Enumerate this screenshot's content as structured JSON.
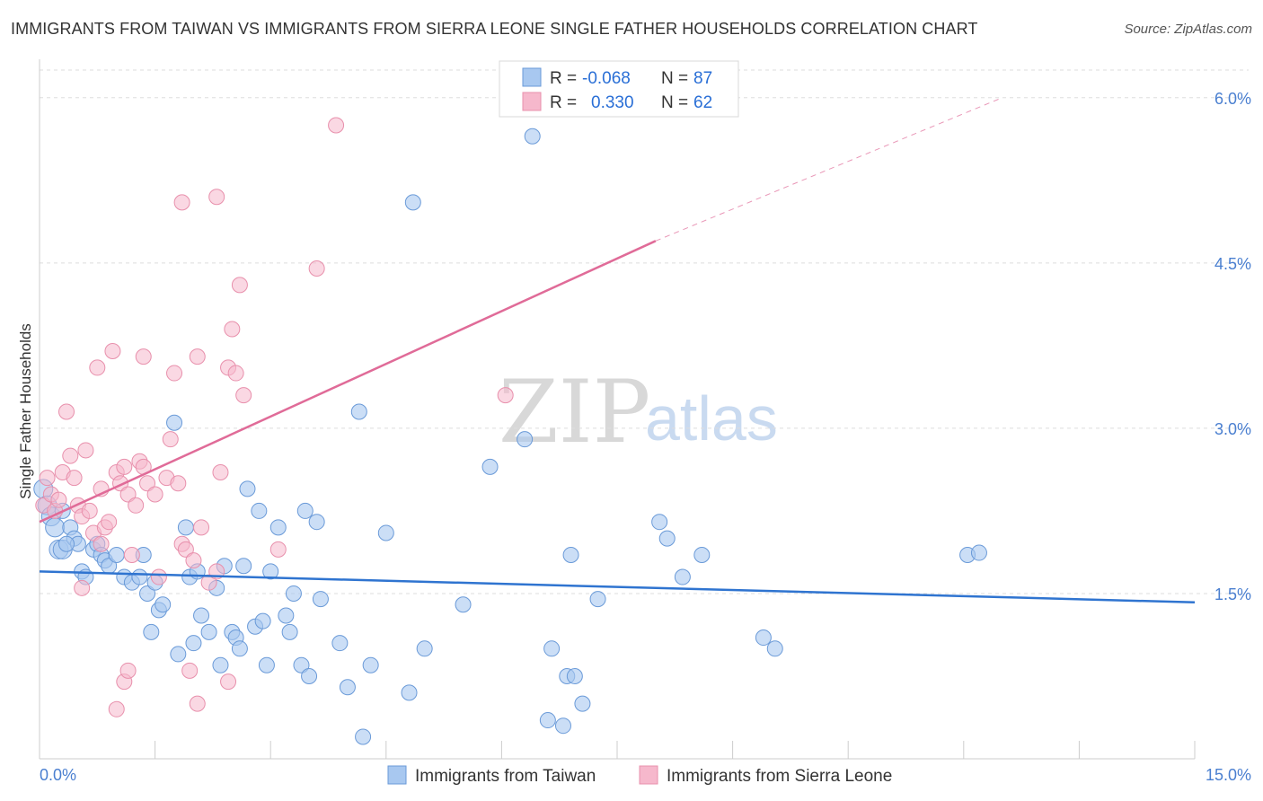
{
  "header": {
    "title": "IMMIGRANTS FROM TAIWAN VS IMMIGRANTS FROM SIERRA LEONE SINGLE FATHER HOUSEHOLDS CORRELATION CHART",
    "source": "Source: ZipAtlas.com"
  },
  "watermark": {
    "zip": "ZIP",
    "atlas": "atlas"
  },
  "legend": {
    "rows": [
      {
        "r_label": "R =",
        "r_value": "-0.068",
        "n_label": "N =",
        "n_value": "87"
      },
      {
        "r_label": "R =",
        "r_value": "0.330",
        "n_label": "N =",
        "n_value": "62"
      }
    ]
  },
  "bottom_legend": {
    "taiwan": "Immigrants from Taiwan",
    "sierra_leone": "Immigrants from Sierra Leone"
  },
  "colors": {
    "taiwan_fill": "#a8c8f0",
    "taiwan_stroke": "#6a9ad8",
    "taiwan_line": "#2f74d0",
    "sl_fill": "#f6b8cc",
    "sl_stroke": "#e890ac",
    "sl_line": "#e06b98",
    "grid": "#dddddd",
    "tick_text": "#4a7fd0"
  },
  "chart_data": {
    "type": "scatter",
    "title": "IMMIGRANTS FROM TAIWAN VS IMMIGRANTS FROM SIERRA LEONE SINGLE FATHER HOUSEHOLDS CORRELATION CHART",
    "xlabel": "",
    "ylabel": "Single Father Households",
    "xlim": [
      0,
      15
    ],
    "ylim": [
      0,
      6.3
    ],
    "x_tick_labels": [
      "0.0%",
      "15.0%"
    ],
    "y_ticks": [
      1.5,
      3.0,
      4.5,
      6.0
    ],
    "y_tick_labels": [
      "1.5%",
      "3.0%",
      "4.5%",
      "6.0%"
    ],
    "grid": true,
    "legend_position": "top-center",
    "series": [
      {
        "name": "Immigrants from Taiwan",
        "r": -0.068,
        "n": 87,
        "trend": {
          "x": [
            0,
            15
          ],
          "y": [
            1.7,
            1.42
          ]
        },
        "points": [
          [
            0.05,
            2.45
          ],
          [
            0.1,
            2.3
          ],
          [
            0.15,
            2.2
          ],
          [
            0.2,
            2.1
          ],
          [
            0.25,
            1.9
          ],
          [
            0.3,
            1.9
          ],
          [
            0.4,
            2.1
          ],
          [
            0.45,
            2.0
          ],
          [
            0.5,
            1.95
          ],
          [
            0.55,
            1.7
          ],
          [
            0.6,
            1.65
          ],
          [
            0.7,
            1.9
          ],
          [
            0.75,
            1.95
          ],
          [
            0.8,
            1.85
          ],
          [
            0.85,
            1.8
          ],
          [
            0.9,
            1.75
          ],
          [
            1.0,
            1.85
          ],
          [
            1.1,
            1.65
          ],
          [
            1.2,
            1.6
          ],
          [
            1.3,
            1.65
          ],
          [
            1.35,
            1.85
          ],
          [
            1.4,
            1.5
          ],
          [
            1.45,
            1.15
          ],
          [
            1.55,
            1.35
          ],
          [
            1.6,
            1.4
          ],
          [
            1.75,
            3.05
          ],
          [
            1.8,
            0.95
          ],
          [
            1.9,
            2.1
          ],
          [
            1.95,
            1.65
          ],
          [
            2.0,
            1.05
          ],
          [
            2.05,
            1.7
          ],
          [
            2.1,
            1.3
          ],
          [
            2.2,
            1.15
          ],
          [
            2.3,
            1.55
          ],
          [
            2.35,
            0.85
          ],
          [
            2.4,
            1.75
          ],
          [
            2.5,
            1.15
          ],
          [
            2.55,
            1.1
          ],
          [
            2.6,
            1.0
          ],
          [
            2.65,
            1.75
          ],
          [
            2.7,
            2.45
          ],
          [
            2.8,
            1.2
          ],
          [
            2.85,
            2.25
          ],
          [
            2.9,
            1.25
          ],
          [
            2.95,
            0.85
          ],
          [
            3.0,
            1.7
          ],
          [
            3.1,
            2.1
          ],
          [
            3.2,
            1.3
          ],
          [
            3.25,
            1.15
          ],
          [
            3.3,
            1.5
          ],
          [
            3.4,
            0.85
          ],
          [
            3.45,
            2.25
          ],
          [
            3.5,
            0.75
          ],
          [
            3.6,
            2.15
          ],
          [
            3.65,
            1.45
          ],
          [
            3.9,
            1.05
          ],
          [
            4.0,
            0.65
          ],
          [
            4.15,
            3.15
          ],
          [
            4.2,
            0.2
          ],
          [
            4.3,
            0.85
          ],
          [
            4.5,
            2.05
          ],
          [
            4.8,
            0.6
          ],
          [
            4.85,
            5.05
          ],
          [
            5.0,
            1.0
          ],
          [
            5.5,
            1.4
          ],
          [
            5.85,
            2.65
          ],
          [
            6.3,
            2.9
          ],
          [
            6.4,
            5.65
          ],
          [
            6.6,
            0.35
          ],
          [
            6.65,
            1.0
          ],
          [
            6.8,
            0.3
          ],
          [
            6.85,
            0.75
          ],
          [
            6.9,
            1.85
          ],
          [
            6.95,
            0.75
          ],
          [
            7.05,
            0.5
          ],
          [
            7.25,
            1.45
          ],
          [
            8.05,
            2.15
          ],
          [
            8.15,
            2.0
          ],
          [
            8.35,
            1.65
          ],
          [
            8.6,
            1.85
          ],
          [
            9.4,
            1.1
          ],
          [
            9.55,
            1.0
          ],
          [
            12.05,
            1.85
          ],
          [
            12.2,
            1.87
          ],
          [
            0.3,
            2.25
          ],
          [
            0.35,
            1.95
          ],
          [
            1.5,
            1.6
          ]
        ]
      },
      {
        "name": "Immigrants from Sierra Leone",
        "r": 0.33,
        "n": 62,
        "trend": {
          "x": [
            0,
            8
          ],
          "y": [
            2.15,
            4.7
          ]
        },
        "trend_extension": {
          "x": [
            8,
            12.5
          ],
          "y": [
            4.7,
            6.0
          ]
        },
        "points": [
          [
            0.05,
            2.3
          ],
          [
            0.1,
            2.55
          ],
          [
            0.15,
            2.4
          ],
          [
            0.2,
            2.25
          ],
          [
            0.25,
            2.35
          ],
          [
            0.3,
            2.6
          ],
          [
            0.35,
            3.15
          ],
          [
            0.4,
            2.75
          ],
          [
            0.45,
            2.55
          ],
          [
            0.5,
            2.3
          ],
          [
            0.55,
            2.2
          ],
          [
            0.6,
            2.8
          ],
          [
            0.65,
            2.25
          ],
          [
            0.7,
            2.05
          ],
          [
            0.75,
            3.55
          ],
          [
            0.8,
            2.45
          ],
          [
            0.85,
            2.1
          ],
          [
            0.9,
            2.15
          ],
          [
            0.95,
            3.7
          ],
          [
            1.0,
            2.6
          ],
          [
            1.05,
            2.5
          ],
          [
            1.1,
            2.65
          ],
          [
            1.15,
            2.4
          ],
          [
            1.2,
            1.85
          ],
          [
            1.25,
            2.3
          ],
          [
            1.3,
            2.7
          ],
          [
            1.35,
            3.65
          ],
          [
            1.4,
            2.5
          ],
          [
            1.5,
            2.4
          ],
          [
            1.55,
            1.65
          ],
          [
            1.65,
            2.55
          ],
          [
            1.7,
            2.9
          ],
          [
            1.75,
            3.5
          ],
          [
            1.8,
            2.5
          ],
          [
            1.85,
            1.95
          ],
          [
            1.9,
            1.9
          ],
          [
            2.0,
            1.8
          ],
          [
            2.05,
            3.65
          ],
          [
            2.1,
            2.1
          ],
          [
            2.2,
            1.6
          ],
          [
            2.3,
            1.7
          ],
          [
            2.35,
            2.6
          ],
          [
            2.45,
            3.55
          ],
          [
            2.5,
            3.9
          ],
          [
            2.55,
            3.5
          ],
          [
            2.6,
            4.3
          ],
          [
            2.65,
            3.3
          ],
          [
            3.1,
            1.9
          ],
          [
            3.6,
            4.45
          ],
          [
            3.85,
            5.75
          ],
          [
            6.05,
            3.3
          ],
          [
            1.85,
            5.05
          ],
          [
            2.3,
            5.1
          ],
          [
            1.1,
            0.7
          ],
          [
            1.15,
            0.8
          ],
          [
            1.0,
            0.45
          ],
          [
            2.05,
            0.5
          ],
          [
            2.45,
            0.7
          ],
          [
            0.55,
            1.55
          ],
          [
            0.8,
            1.95
          ],
          [
            1.95,
            0.8
          ],
          [
            1.35,
            2.65
          ]
        ]
      }
    ]
  }
}
